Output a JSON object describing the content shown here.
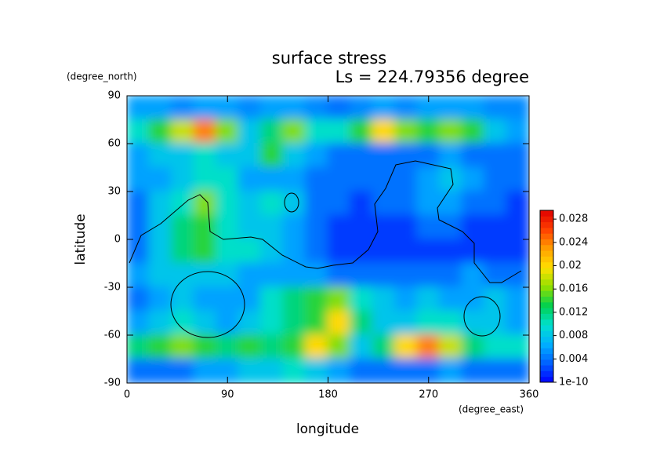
{
  "chart_data": {
    "type": "heatmap",
    "title": "surface stress",
    "subtitle": "Ls = 224.79356 degree",
    "x_label": "longitude",
    "y_label": "latitude",
    "x_unit": "(degree_east)",
    "y_unit": "(degree_north)",
    "xlim": [
      0,
      360
    ],
    "ylim": [
      -90,
      90
    ],
    "xticks": [
      0,
      90,
      180,
      270,
      360
    ],
    "yticks": [
      -90,
      -60,
      -30,
      0,
      30,
      60,
      90
    ],
    "zlim": [
      0,
      0.0295
    ],
    "zticks": [
      1e-10,
      0.004,
      0.008,
      0.012,
      0.016,
      0.02,
      0.024,
      0.028
    ],
    "colormap": [
      "#0000ff",
      "#0060ff",
      "#00b0ff",
      "#00e0d0",
      "#00d050",
      "#90e000",
      "#ffe000",
      "#ffa000",
      "#ff4000",
      "#e00000"
    ],
    "x": [
      10,
      30,
      50,
      70,
      90,
      110,
      130,
      150,
      170,
      190,
      210,
      230,
      250,
      270,
      290,
      310,
      330,
      350
    ],
    "y": [
      82.5,
      67.5,
      52.5,
      37.5,
      22.5,
      7.5,
      -7.5,
      -22.5,
      -37.5,
      -52.5,
      -67.5,
      -82.5
    ],
    "z": [
      [
        0.006,
        0.006,
        0.005,
        0.006,
        0.006,
        0.005,
        0.006,
        0.006,
        0.005,
        0.004,
        0.005,
        0.006,
        0.005,
        0.006,
        0.006,
        0.006,
        0.005,
        0.005
      ],
      [
        0.01,
        0.014,
        0.018,
        0.024,
        0.016,
        0.008,
        0.012,
        0.016,
        0.01,
        0.01,
        0.014,
        0.02,
        0.016,
        0.014,
        0.016,
        0.014,
        0.008,
        0.006
      ],
      [
        0.006,
        0.008,
        0.008,
        0.01,
        0.008,
        0.008,
        0.014,
        0.008,
        0.006,
        0.004,
        0.004,
        0.004,
        0.004,
        0.004,
        0.006,
        0.004,
        0.004,
        0.004
      ],
      [
        0.006,
        0.006,
        0.008,
        0.01,
        0.01,
        0.006,
        0.006,
        0.006,
        0.004,
        0.004,
        0.004,
        0.004,
        0.004,
        0.006,
        0.008,
        0.006,
        0.004,
        0.004
      ],
      [
        0.004,
        0.008,
        0.01,
        0.016,
        0.01,
        0.008,
        0.01,
        0.008,
        0.004,
        0.004,
        0.002,
        0.004,
        0.004,
        0.006,
        0.006,
        0.004,
        0.004,
        0.002
      ],
      [
        0.004,
        0.008,
        0.012,
        0.014,
        0.01,
        0.008,
        0.008,
        0.006,
        0.004,
        0.002,
        0.002,
        0.002,
        0.002,
        0.004,
        0.004,
        0.002,
        0.002,
        0.002
      ],
      [
        0.004,
        0.008,
        0.012,
        0.014,
        0.01,
        0.01,
        0.008,
        0.006,
        0.004,
        0.002,
        0.002,
        0.002,
        0.002,
        0.002,
        0.002,
        0.002,
        0.002,
        0.002
      ],
      [
        0.006,
        0.008,
        0.008,
        0.008,
        0.008,
        0.006,
        0.006,
        0.006,
        0.006,
        0.004,
        0.004,
        0.004,
        0.004,
        0.004,
        0.004,
        0.006,
        0.004,
        0.004
      ],
      [
        0.004,
        0.006,
        0.008,
        0.006,
        0.006,
        0.006,
        0.01,
        0.012,
        0.014,
        0.016,
        0.01,
        0.008,
        0.006,
        0.008,
        0.006,
        0.006,
        0.008,
        0.006
      ],
      [
        0.006,
        0.008,
        0.01,
        0.008,
        0.006,
        0.008,
        0.01,
        0.012,
        0.014,
        0.02,
        0.012,
        0.008,
        0.008,
        0.01,
        0.01,
        0.008,
        0.008,
        0.006
      ],
      [
        0.012,
        0.014,
        0.016,
        0.014,
        0.012,
        0.014,
        0.012,
        0.014,
        0.02,
        0.016,
        0.008,
        0.012,
        0.02,
        0.024,
        0.018,
        0.012,
        0.01,
        0.01
      ],
      [
        0.004,
        0.004,
        0.004,
        0.006,
        0.006,
        0.008,
        0.008,
        0.01,
        0.008,
        0.006,
        0.004,
        0.004,
        0.004,
        0.004,
        0.006,
        0.004,
        0.004,
        0.004
      ]
    ]
  }
}
